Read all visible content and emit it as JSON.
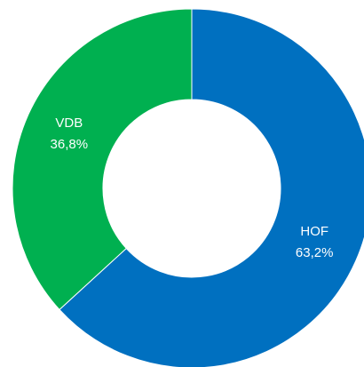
{
  "chart_data": {
    "type": "pie",
    "donut": true,
    "categories": [
      "HOF",
      "VDB"
    ],
    "values": [
      63.2,
      36.8
    ],
    "value_labels": [
      "63,2%",
      "36,8%"
    ],
    "colors": [
      "#0070c0",
      "#00b050"
    ]
  }
}
